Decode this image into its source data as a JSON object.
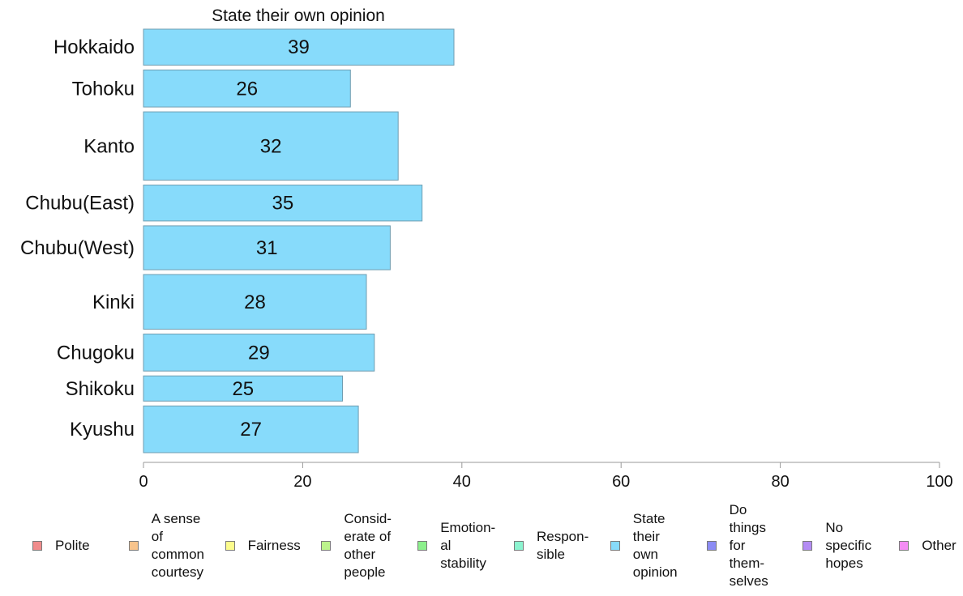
{
  "chart_data": {
    "type": "bar",
    "orientation": "horizontal",
    "title": "State their own opinion",
    "categories": [
      "Hokkaido",
      "Tohoku",
      "Kanto",
      "Chubu(East)",
      "Chubu(West)",
      "Kinki",
      "Chugoku",
      "Shikoku",
      "Kyushu"
    ],
    "values": [
      39,
      26,
      32,
      35,
      31,
      28,
      29,
      25,
      27
    ],
    "value_labels": [
      "39",
      "26",
      "32",
      "35",
      "31",
      "28",
      "29",
      "25",
      "27"
    ],
    "relative_bar_thickness": [
      1.0,
      1.03,
      1.9,
      1.0,
      1.22,
      1.52,
      1.03,
      0.7,
      1.3
    ],
    "xlim": [
      0,
      100
    ],
    "x_ticks": [
      "0",
      "20",
      "40",
      "60",
      "80",
      "100"
    ],
    "xlabel": "",
    "ylabel": "",
    "grid": false,
    "bar_color": "#87DBFB",
    "bar_border_color": "#6F9DB1",
    "legend_position": "bottom",
    "legend": [
      {
        "label": "Polite",
        "color": "#F08C8C"
      },
      {
        "label": "A sense\nof\ncommon\ncourtesy",
        "color": "#F8C48C"
      },
      {
        "label": "Fairness",
        "color": "#FCFC8C"
      },
      {
        "label": "Consid-\nerate of\nother\npeople",
        "color": "#BCF48C"
      },
      {
        "label": "Emotion-\nal\nstability",
        "color": "#8CF08C"
      },
      {
        "label": "Respon-\nsible",
        "color": "#8CF4D0"
      },
      {
        "label": "State\ntheir\nown\nopinion",
        "color": "#87DBFB"
      },
      {
        "label": "Do\nthings\nfor\nthem-\nselves",
        "color": "#8C8CF4"
      },
      {
        "label": "No\nspecific\nhopes",
        "color": "#B48CF4"
      },
      {
        "label": "Other",
        "color": "#F48CF4"
      }
    ]
  }
}
